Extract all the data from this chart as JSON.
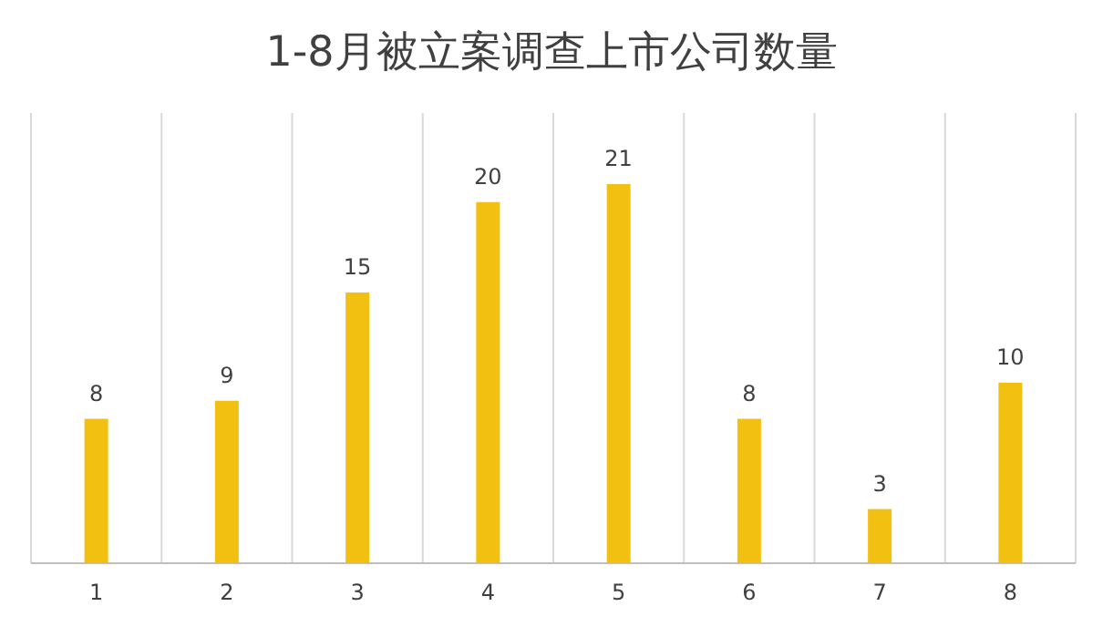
{
  "chart_data": {
    "type": "bar",
    "title": "1-8月被立案调查上市公司数量",
    "categories": [
      "1",
      "2",
      "3",
      "4",
      "5",
      "6",
      "7",
      "8"
    ],
    "values": [
      8,
      9,
      15,
      20,
      21,
      8,
      3,
      10
    ],
    "color": "#f2c011",
    "data_labels": true,
    "grid": "x"
  }
}
